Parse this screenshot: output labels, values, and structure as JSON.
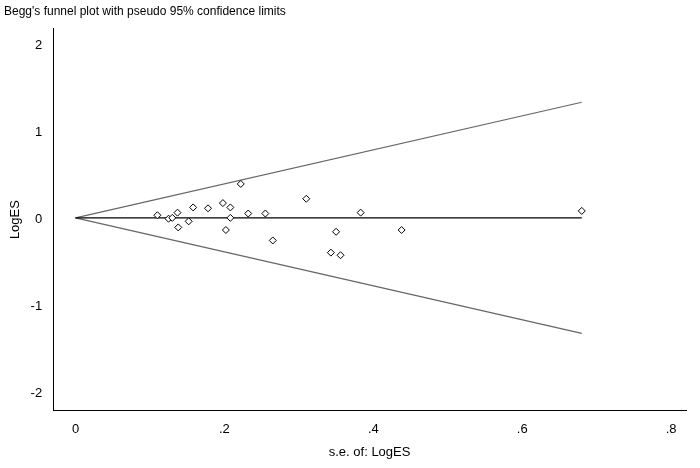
{
  "chart_data": {
    "type": "scatter",
    "title": "Begg's funnel plot with pseudo 95% confidence limits",
    "x_label": "s.e. of: LogES",
    "y_label": "LogES",
    "xlim": [
      -0.03,
      0.82
    ],
    "xticks": [
      0,
      {
        "value": 0.2,
        "label": ".2"
      },
      {
        "value": 0.4,
        "label": ".4"
      },
      {
        "value": 0.6,
        "label": ".6"
      },
      {
        "value": 0.8,
        "label": ".8"
      }
    ],
    "ylim": [
      -2.2,
      2.2
    ],
    "yticks": [
      -2,
      -1,
      0,
      1,
      2
    ],
    "grid": false,
    "series": [
      {
        "type": "scatter",
        "color": "#000000",
        "marker": "diamond",
        "x": [
          0.11,
          0.125,
          0.13,
          0.137,
          0.138,
          0.152,
          0.158,
          0.178,
          0.198,
          0.202,
          0.208,
          0.208,
          0.222,
          0.232,
          0.255,
          0.265,
          0.31,
          0.343,
          0.35,
          0.356,
          0.383,
          0.438,
          0.68
        ],
        "values": [
          0.05,
          0.01,
          0.02,
          0.08,
          -0.09,
          -0.02,
          0.14,
          0.13,
          0.19,
          -0.12,
          0.14,
          0.02,
          0.41,
          0.07,
          0.07,
          -0.24,
          0.24,
          -0.38,
          -0.14,
          -0.41,
          0.08,
          -0.12,
          0.1
        ]
      },
      {
        "type": "line",
        "color": "#000000",
        "line_style": "solid",
        "x": [
          0,
          0.68
        ],
        "values": [
          0.02,
          0.02
        ]
      },
      {
        "type": "line",
        "color": "#666666",
        "line_style": "solid",
        "x": [
          0,
          0.68
        ],
        "values": [
          0.02,
          1.35
        ]
      },
      {
        "type": "line",
        "color": "#666666",
        "line_style": "solid",
        "x": [
          0,
          0.68
        ],
        "values": [
          0.02,
          -1.31
        ]
      }
    ]
  }
}
